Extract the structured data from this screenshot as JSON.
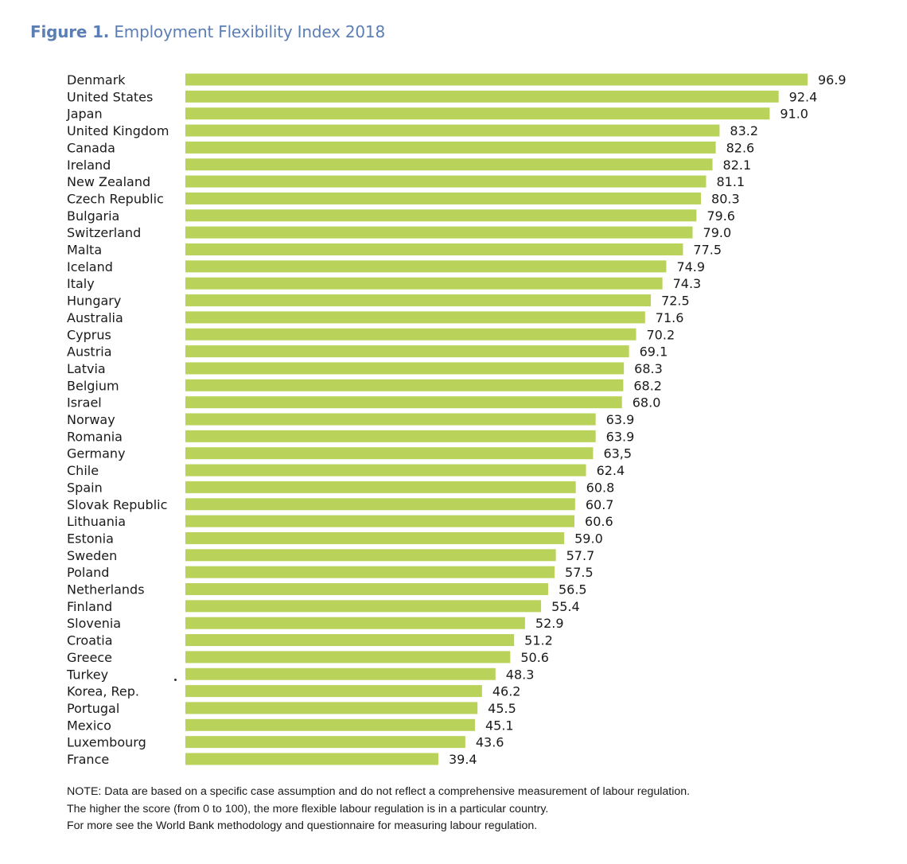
{
  "header": {
    "figure_label": "Figure 1.",
    "title": "Employment Flexibility Index 2018"
  },
  "colors": {
    "title": "#5b7fb5",
    "bar": "#b9d35a",
    "text": "#1a1a1a"
  },
  "chart_data": {
    "type": "bar",
    "orientation": "horizontal",
    "title": "Figure 1. Employment Flexibility Index 2018",
    "xlabel": "",
    "ylabel": "",
    "xlim": [
      0,
      100
    ],
    "grid": false,
    "legend": "none",
    "categories": [
      "Denmark",
      "United States",
      "Japan",
      "United Kingdom",
      "Canada",
      "Ireland",
      "New Zealand",
      "Czech Republic",
      "Bulgaria",
      "Switzerland",
      "Malta",
      "Iceland",
      "Italy",
      "Hungary",
      "Australia",
      "Cyprus",
      "Austria",
      "Latvia",
      "Belgium",
      "Israel",
      "Norway",
      "Romania",
      "Germany",
      "Chile",
      "Spain",
      "Slovak Republic",
      "Lithuania",
      "Estonia",
      "Sweden",
      "Poland",
      "Netherlands",
      "Finland",
      "Slovenia",
      "Croatia",
      "Greece",
      "Turkey",
      "Korea, Rep.",
      "Portugal",
      "Mexico",
      "Luxembourg",
      "France"
    ],
    "values": [
      96.9,
      92.4,
      91.0,
      83.2,
      82.6,
      82.1,
      81.1,
      80.3,
      79.6,
      79.0,
      77.5,
      74.9,
      74.3,
      72.5,
      71.6,
      70.2,
      69.1,
      68.3,
      68.2,
      68.0,
      63.9,
      63.9,
      63.5,
      62.4,
      60.8,
      60.7,
      60.6,
      59.0,
      57.7,
      57.5,
      56.5,
      55.4,
      52.9,
      51.2,
      50.6,
      48.3,
      46.2,
      45.5,
      45.1,
      43.6,
      39.4
    ],
    "value_labels": [
      "96.9",
      "92.4",
      "91.0",
      "83.2",
      "82.6",
      "82.1",
      "81.1",
      "80.3",
      "79.6",
      "79.0",
      "77.5",
      "74.9",
      "74.3",
      "72.5",
      "71.6",
      "70.2",
      "69.1",
      "68.3",
      "68.2",
      "68.0",
      "63.9",
      "63.9",
      "63,5",
      "62.4",
      "60.8",
      "60.7",
      "60.6",
      "59.0",
      "57.7",
      "57.5",
      "56.5",
      "55.4",
      "52.9",
      "51.2",
      "50.6",
      "48.3",
      "46.2",
      "45.5",
      "45.1",
      "43.6",
      "39.4"
    ]
  },
  "notes": [
    "NOTE: Data are based on a specific case assumption and do not reflect a comprehensive measurement of labour regulation.",
    "The higher the score (from 0 to 100), the more flexible labour regulation is in a particular country.",
    "For more see the World Bank methodology and questionnaire for measuring labour regulation."
  ]
}
